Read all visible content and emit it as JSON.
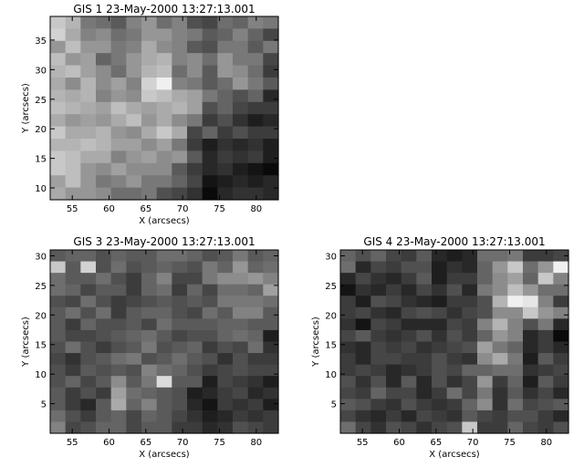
{
  "chart_data": [
    {
      "type": "heatmap",
      "title": "GIS 1 23-May-2000 13:27:13.001",
      "xlabel": "X (arcsecs)",
      "ylabel": "Y (arcsecs)",
      "xlim": [
        52,
        83
      ],
      "ylim": [
        8,
        39
      ],
      "xticks": [
        55,
        60,
        65,
        70,
        75,
        80
      ],
      "yticks": [
        10,
        15,
        20,
        25,
        30,
        35
      ],
      "grid": [
        [
          200,
          180,
          120,
          110,
          90,
          130,
          150,
          110,
          130,
          80,
          70,
          110,
          100,
          130,
          120
        ],
        [
          210,
          170,
          130,
          140,
          110,
          120,
          150,
          150,
          130,
          120,
          90,
          100,
          130,
          100,
          70
        ],
        [
          150,
          190,
          150,
          150,
          120,
          130,
          170,
          140,
          130,
          90,
          80,
          120,
          120,
          90,
          120
        ],
        [
          190,
          150,
          160,
          100,
          120,
          150,
          170,
          180,
          130,
          140,
          110,
          150,
          120,
          120,
          70
        ],
        [
          180,
          190,
          160,
          140,
          110,
          150,
          180,
          190,
          110,
          140,
          90,
          150,
          140,
          110,
          60
        ],
        [
          170,
          140,
          180,
          140,
          160,
          130,
          210,
          240,
          130,
          120,
          90,
          110,
          150,
          120,
          90
        ],
        [
          180,
          170,
          180,
          130,
          150,
          140,
          200,
          190,
          170,
          160,
          120,
          100,
          80,
          100,
          40
        ],
        [
          190,
          180,
          170,
          160,
          190,
          170,
          160,
          170,
          180,
          160,
          80,
          100,
          70,
          60,
          60
        ],
        [
          170,
          150,
          160,
          150,
          170,
          190,
          150,
          170,
          140,
          120,
          60,
          80,
          50,
          30,
          40
        ],
        [
          200,
          170,
          170,
          180,
          150,
          140,
          170,
          200,
          170,
          70,
          100,
          60,
          80,
          60,
          60
        ],
        [
          180,
          180,
          190,
          180,
          160,
          160,
          140,
          160,
          120,
          60,
          30,
          50,
          40,
          50,
          30
        ],
        [
          200,
          190,
          170,
          170,
          130,
          150,
          160,
          140,
          150,
          90,
          40,
          60,
          50,
          60,
          30
        ],
        [
          200,
          190,
          150,
          140,
          160,
          140,
          140,
          140,
          90,
          60,
          40,
          50,
          30,
          20,
          10
        ],
        [
          160,
          190,
          150,
          120,
          130,
          150,
          120,
          120,
          100,
          70,
          20,
          30,
          40,
          30,
          40
        ],
        [
          170,
          150,
          150,
          140,
          110,
          110,
          120,
          80,
          70,
          50,
          10,
          40,
          50,
          50,
          40
        ]
      ]
    },
    {
      "type": "heatmap",
      "title": "GIS 3 23-May-2000 13:27:13.001",
      "xlabel": "X (arcsecs)",
      "ylabel": "Y (arcsecs)",
      "xlim": [
        52,
        83
      ],
      "ylim": [
        0,
        31
      ],
      "xticks": [
        55,
        60,
        65,
        70,
        75,
        80
      ],
      "yticks": [
        5,
        10,
        15,
        20,
        25,
        30
      ],
      "grid": [
        [
          90,
          100,
          100,
          80,
          100,
          90,
          90,
          110,
          110,
          100,
          80,
          90,
          120,
          90,
          100
        ],
        [
          200,
          90,
          210,
          80,
          110,
          80,
          90,
          100,
          90,
          80,
          120,
          100,
          150,
          100,
          110
        ],
        [
          110,
          90,
          90,
          110,
          80,
          60,
          100,
          130,
          70,
          70,
          120,
          140,
          140,
          150,
          130
        ],
        [
          110,
          100,
          70,
          90,
          90,
          60,
          100,
          110,
          60,
          100,
          70,
          110,
          110,
          100,
          160
        ],
        [
          80,
          70,
          110,
          80,
          60,
          70,
          80,
          90,
          80,
          90,
          80,
          120,
          120,
          120,
          110
        ],
        [
          90,
          110,
          80,
          110,
          60,
          90,
          100,
          100,
          80,
          70,
          110,
          90,
          130,
          130,
          90
        ],
        [
          90,
          60,
          100,
          80,
          80,
          90,
          70,
          110,
          90,
          90,
          90,
          100,
          100,
          90,
          90
        ],
        [
          90,
          70,
          70,
          80,
          90,
          100,
          110,
          90,
          70,
          80,
          80,
          100,
          110,
          100,
          30
        ],
        [
          80,
          110,
          80,
          60,
          80,
          90,
          120,
          80,
          90,
          100,
          60,
          80,
          70,
          110,
          50
        ],
        [
          70,
          50,
          80,
          90,
          110,
          120,
          80,
          90,
          110,
          90,
          80,
          50,
          80,
          60,
          60
        ],
        [
          80,
          60,
          90,
          80,
          90,
          80,
          130,
          110,
          100,
          80,
          60,
          70,
          80,
          70,
          70
        ],
        [
          80,
          100,
          70,
          90,
          140,
          90,
          120,
          220,
          90,
          90,
          30,
          70,
          60,
          50,
          30
        ],
        [
          90,
          60,
          80,
          60,
          160,
          110,
          100,
          90,
          80,
          30,
          40,
          60,
          70,
          40,
          50
        ],
        [
          90,
          60,
          40,
          90,
          170,
          100,
          130,
          90,
          80,
          40,
          20,
          60,
          50,
          60,
          30
        ],
        [
          110,
          80,
          60,
          90,
          100,
          70,
          100,
          90,
          70,
          50,
          30,
          40,
          60,
          50,
          60
        ],
        [
          130,
          70,
          80,
          100,
          100,
          70,
          90,
          90,
          60,
          60,
          40,
          50,
          80,
          70,
          60
        ]
      ]
    },
    {
      "type": "heatmap",
      "title": "GIS 4 23-May-2000 13:27:13.001",
      "xlabel": "X (arcsecs)",
      "ylabel": "Y (arcsecs)",
      "xlim": [
        52,
        83
      ],
      "ylim": [
        0,
        31
      ],
      "xticks": [
        55,
        60,
        65,
        70,
        75,
        80
      ],
      "yticks": [
        5,
        10,
        15,
        20,
        25,
        30
      ],
      "grid": [
        [
          100,
          80,
          100,
          70,
          60,
          90,
          40,
          30,
          40,
          110,
          110,
          120,
          60,
          60,
          70
        ],
        [
          110,
          40,
          70,
          60,
          80,
          80,
          30,
          50,
          40,
          100,
          150,
          200,
          110,
          150,
          240
        ],
        [
          40,
          70,
          50,
          40,
          60,
          90,
          30,
          60,
          60,
          100,
          140,
          160,
          100,
          200,
          130
        ],
        [
          20,
          50,
          40,
          60,
          40,
          70,
          50,
          80,
          40,
          120,
          140,
          190,
          150,
          110,
          110
        ],
        [
          60,
          30,
          80,
          70,
          50,
          40,
          30,
          60,
          60,
          80,
          180,
          240,
          230,
          130,
          60
        ],
        [
          60,
          70,
          50,
          40,
          70,
          80,
          70,
          50,
          70,
          80,
          140,
          140,
          200,
          150,
          130
        ],
        [
          50,
          20,
          70,
          60,
          40,
          40,
          40,
          70,
          60,
          130,
          180,
          130,
          80,
          120,
          40
        ],
        [
          70,
          90,
          60,
          50,
          60,
          80,
          50,
          80,
          60,
          100,
          150,
          130,
          40,
          60,
          10
        ],
        [
          50,
          40,
          70,
          60,
          70,
          50,
          60,
          70,
          80,
          160,
          120,
          100,
          40,
          60,
          40
        ],
        [
          60,
          40,
          70,
          70,
          60,
          60,
          80,
          60,
          50,
          140,
          170,
          120,
          30,
          90,
          60
        ],
        [
          60,
          70,
          60,
          40,
          50,
          60,
          80,
          70,
          100,
          100,
          110,
          110,
          50,
          60,
          70
        ],
        [
          80,
          50,
          80,
          40,
          90,
          40,
          80,
          50,
          70,
          150,
          60,
          100,
          30,
          90,
          60
        ],
        [
          70,
          60,
          100,
          70,
          70,
          40,
          60,
          110,
          70,
          120,
          50,
          90,
          50,
          70,
          40
        ],
        [
          90,
          80,
          60,
          50,
          80,
          60,
          50,
          60,
          100,
          140,
          50,
          110,
          70,
          80,
          90
        ],
        [
          70,
          50,
          40,
          60,
          40,
          70,
          60,
          50,
          90,
          70,
          60,
          80,
          80,
          60,
          40
        ],
        [
          110,
          70,
          50,
          80,
          70,
          50,
          70,
          80,
          200,
          60,
          60,
          100,
          70,
          60,
          80
        ]
      ]
    }
  ]
}
